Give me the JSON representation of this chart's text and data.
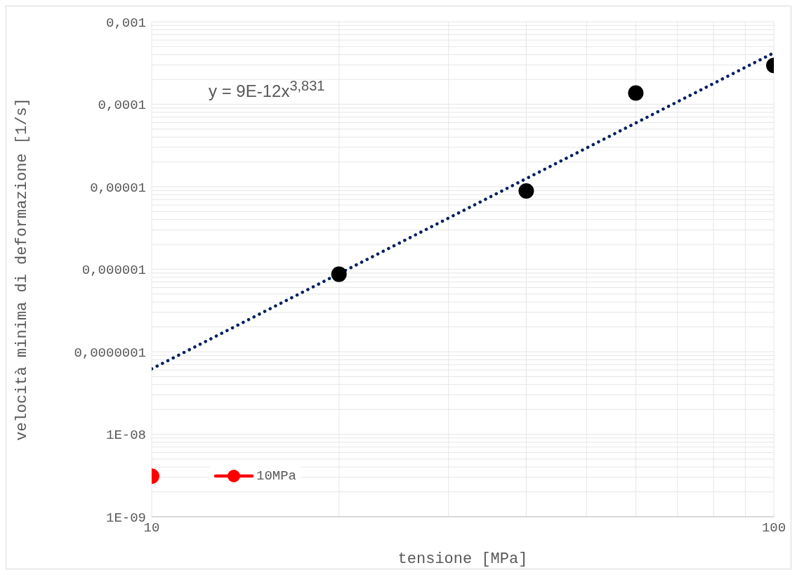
{
  "chart_data": {
    "type": "scatter",
    "xlabel": "tensione [MPa]",
    "ylabel": "velocità minima di deformazione [1/s]",
    "log": "xy",
    "grid": true,
    "legend": "bottom left",
    "marker": "circle",
    "xlim": [
      10,
      100
    ],
    "ylim": [
      1e-09,
      0.001
    ],
    "xticks": [
      10,
      {
        "value": 20,
        "label": null
      },
      {
        "value": 30,
        "label": null
      },
      {
        "value": 40,
        "label": null
      },
      {
        "value": 50,
        "label": null
      },
      {
        "value": 60,
        "label": null
      },
      {
        "value": 70,
        "label": null
      },
      {
        "value": 80,
        "label": null
      },
      {
        "value": 90,
        "label": null
      },
      100
    ],
    "yticks": [
      {
        "value": 1e-09,
        "label": "1E-09"
      },
      {
        "value": 2e-09,
        "label": null
      },
      {
        "value": 3e-09,
        "label": null
      },
      {
        "value": 4e-09,
        "label": null
      },
      {
        "value": 5e-09,
        "label": null
      },
      {
        "value": 6e-09,
        "label": null
      },
      {
        "value": 7e-09,
        "label": null
      },
      {
        "value": 8e-09,
        "label": null
      },
      {
        "value": 9e-09,
        "label": null
      },
      {
        "value": 1e-08,
        "label": "1E-08"
      },
      {
        "value": 2e-08,
        "label": null
      },
      {
        "value": 3e-08,
        "label": null
      },
      {
        "value": 4e-08,
        "label": null
      },
      {
        "value": 5e-08,
        "label": null
      },
      {
        "value": 6e-08,
        "label": null
      },
      {
        "value": 7e-08,
        "label": null
      },
      {
        "value": 8e-08,
        "label": null
      },
      {
        "value": 9e-08,
        "label": null
      },
      {
        "value": 1e-07,
        "label": "0,0000001"
      },
      {
        "value": 2e-07,
        "label": null
      },
      {
        "value": 3e-07,
        "label": null
      },
      {
        "value": 4e-07,
        "label": null
      },
      {
        "value": 5e-07,
        "label": null
      },
      {
        "value": 6e-07,
        "label": null
      },
      {
        "value": 7e-07,
        "label": null
      },
      {
        "value": 8e-07,
        "label": null
      },
      {
        "value": 9e-07,
        "label": null
      },
      {
        "value": 1e-06,
        "label": "0,000001"
      },
      {
        "value": 2e-06,
        "label": null
      },
      {
        "value": 3e-06,
        "label": null
      },
      {
        "value": 4e-06,
        "label": null
      },
      {
        "value": 5e-06,
        "label": null
      },
      {
        "value": 6e-06,
        "label": null
      },
      {
        "value": 7e-06,
        "label": null
      },
      {
        "value": 8e-06,
        "label": null
      },
      {
        "value": 9e-06,
        "label": null
      },
      {
        "value": 1e-05,
        "label": "0,00001"
      },
      {
        "value": 2e-05,
        "label": null
      },
      {
        "value": 3e-05,
        "label": null
      },
      {
        "value": 4e-05,
        "label": null
      },
      {
        "value": 5e-05,
        "label": null
      },
      {
        "value": 6e-05,
        "label": null
      },
      {
        "value": 7e-05,
        "label": null
      },
      {
        "value": 8e-05,
        "label": null
      },
      {
        "value": 9e-05,
        "label": null
      },
      {
        "value": 0.0001,
        "label": "0,0001"
      },
      {
        "value": 0.0002,
        "label": null
      },
      {
        "value": 0.0003,
        "label": null
      },
      {
        "value": 0.0004,
        "label": null
      },
      {
        "value": 0.0005,
        "label": null
      },
      {
        "value": 0.0006,
        "label": null
      },
      {
        "value": 0.0007,
        "label": null
      },
      {
        "value": 0.0008,
        "label": null
      },
      {
        "value": 0.0009,
        "label": null
      },
      {
        "value": 0.001,
        "label": "0,001"
      }
    ],
    "series": [
      {
        "type": "line",
        "color": "#002060",
        "line_style": "dotted",
        "marker": "none",
        "x": [
          10,
          100
        ],
        "values": [
          6.2e-08,
          0.00042
        ]
      },
      {
        "type": "scatter",
        "color": "#000000",
        "x": [
          20,
          40,
          60,
          100
        ],
        "values": [
          8.7e-07,
          8.9e-06,
          0.000137,
          0.000295
        ]
      },
      {
        "type": "line",
        "name": "10MPa",
        "color": "#ff0000",
        "x": [
          10
        ],
        "values": [
          3.1e-09
        ]
      }
    ],
    "annotations": [
      "y = 9E-12x$^{3,831}$"
    ]
  }
}
